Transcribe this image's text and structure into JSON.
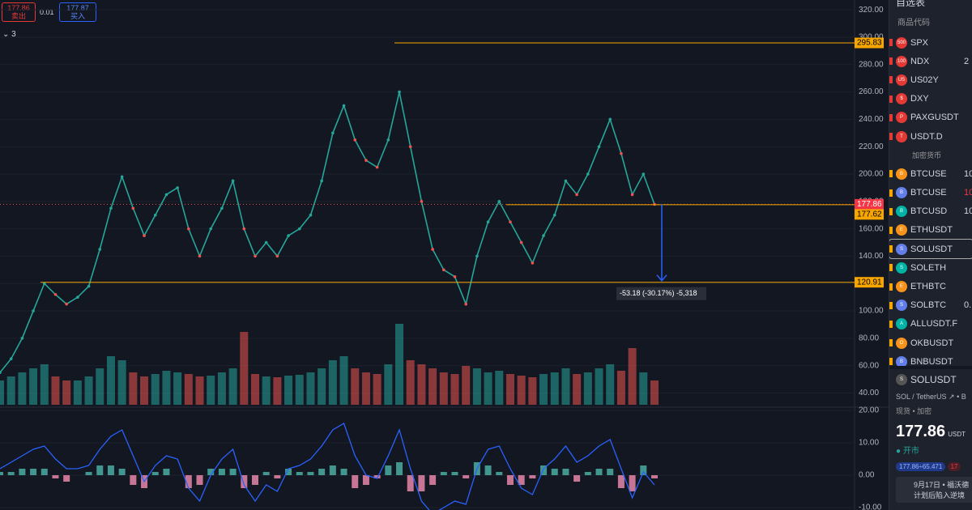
{
  "toolbar": {
    "sell_price": "177.86",
    "sell_label": "卖出",
    "spread": "0.01",
    "buy_price": "177.87",
    "buy_label": "买入",
    "indicators": "3"
  },
  "price_pane": {
    "ylim": [
      31.4,
      327.2
    ],
    "yticks": [
      {
        "value": 40,
        "label": "40.00"
      },
      {
        "value": 60,
        "label": "60.00"
      },
      {
        "value": 80,
        "label": "80.00"
      },
      {
        "value": 100,
        "label": "100.00"
      },
      {
        "value": 120,
        "label": "120.00"
      },
      {
        "value": 140,
        "label": "140.00"
      },
      {
        "value": 160,
        "label": "160.00"
      },
      {
        "value": 180,
        "label": "180.00"
      },
      {
        "value": 200,
        "label": "200.00"
      },
      {
        "value": 220,
        "label": "220.00"
      },
      {
        "value": 240,
        "label": "240.00"
      },
      {
        "value": 260,
        "label": "260.00"
      },
      {
        "value": 280,
        "label": "280.00"
      },
      {
        "value": 300,
        "label": "300.00"
      },
      {
        "value": 320,
        "label": "320.00"
      }
    ],
    "closes": [
      55,
      65,
      80,
      100,
      120,
      112,
      105,
      110,
      118,
      145,
      175,
      198,
      175,
      155,
      170,
      185,
      190,
      160,
      140,
      160,
      175,
      195,
      160,
      140,
      150,
      140,
      155,
      160,
      170,
      195,
      230,
      250,
      225,
      210,
      205,
      225,
      260,
      220,
      180,
      145,
      130,
      125,
      105,
      140,
      165,
      180,
      165,
      150,
      135,
      155,
      170,
      195,
      185,
      200,
      220,
      240,
      215,
      185,
      200,
      177.86
    ],
    "volume": [
      30,
      35,
      40,
      45,
      50,
      35,
      30,
      30,
      35,
      45,
      60,
      55,
      40,
      35,
      38,
      42,
      40,
      38,
      35,
      36,
      40,
      45,
      90,
      38,
      35,
      34,
      36,
      37,
      40,
      45,
      55,
      60,
      45,
      40,
      38,
      50,
      100,
      55,
      50,
      45,
      40,
      38,
      48,
      45,
      40,
      42,
      38,
      36,
      34,
      38,
      40,
      45,
      38,
      40,
      45,
      50,
      42,
      70,
      40,
      30
    ],
    "levels": [
      {
        "value": 295.83,
        "label": "295.83"
      },
      {
        "value": 177.86,
        "label": "177.86"
      },
      {
        "value": 177.62,
        "label": "177.62"
      },
      {
        "value": 120.91,
        "label": "120.91"
      }
    ],
    "measure": "-53.18 (-30.17%) -5,318"
  },
  "osc_pane": {
    "ylim": [
      -10.75,
      21
    ],
    "yticks": [
      {
        "value": 20,
        "label": "20.00"
      },
      {
        "value": 10,
        "label": "10.00"
      },
      {
        "value": 0,
        "label": "0.00"
      },
      {
        "value": -10,
        "label": "-10.00"
      }
    ],
    "histogram": [
      1,
      1,
      2,
      2,
      2,
      -1,
      -2,
      0,
      1,
      3,
      3,
      2,
      -3,
      -4,
      1,
      2,
      0,
      -4,
      -3,
      2,
      2,
      2,
      -4,
      -3,
      1,
      -1,
      2,
      1,
      1,
      2,
      3,
      2,
      -4,
      -3,
      -1,
      3,
      4,
      -5,
      -5,
      -3,
      1,
      1,
      -1,
      4,
      3,
      1,
      -3,
      -3,
      -1,
      3,
      2,
      2,
      -2,
      1,
      2,
      2,
      -4,
      -5,
      3,
      -1
    ],
    "line": [
      2,
      4,
      6,
      8,
      9,
      5,
      2,
      2,
      3,
      8,
      12,
      14,
      6,
      -2,
      3,
      6,
      5,
      -4,
      -8,
      0,
      5,
      8,
      -3,
      -8,
      -3,
      -5,
      2,
      3,
      5,
      9,
      14,
      16,
      6,
      0,
      -1,
      6,
      14,
      2,
      -8,
      -12,
      -10,
      -8,
      -9,
      2,
      8,
      9,
      2,
      -4,
      -6,
      2,
      5,
      9,
      4,
      6,
      9,
      11,
      2,
      -7,
      1,
      -3
    ]
  },
  "sidebar": {
    "title": "自选表",
    "column": "商品代码",
    "section": "加密货币",
    "items": [
      {
        "badge": "500",
        "symbol": "SPX",
        "value": null
      },
      {
        "badge": "100",
        "symbol": "NDX",
        "value": "2"
      },
      {
        "badge": "US",
        "symbol": "US02Y",
        "value": null
      },
      {
        "badge": "$",
        "symbol": "DXY",
        "value": null
      },
      {
        "badge": "P",
        "symbol": "PAXGUSDT",
        "value": null
      },
      {
        "badge": "T",
        "symbol": "USDT.D",
        "value": null
      },
      {
        "badge": "B",
        "symbol": "BTCUSE",
        "value": "10"
      },
      {
        "badge": "B",
        "symbol": "BTCUSE",
        "value": "10"
      },
      {
        "badge": "B",
        "symbol": "BTCUSD",
        "value": "10"
      },
      {
        "badge": "E",
        "symbol": "ETHUSDT",
        "value": null
      },
      {
        "badge": "S",
        "symbol": "SOLUSDT",
        "value": null
      },
      {
        "badge": "S",
        "symbol": "SOLETH",
        "value": null
      },
      {
        "badge": "E",
        "symbol": "ETHBTC",
        "value": null
      },
      {
        "badge": "S",
        "symbol": "SOLBTC",
        "value": "0."
      },
      {
        "badge": "A",
        "symbol": "ALLUSDT.F",
        "value": null
      },
      {
        "badge": "O",
        "symbol": "OKBUSDT",
        "value": null
      },
      {
        "badge": "B",
        "symbol": "BNBUSDT",
        "value": null
      }
    ],
    "detail": {
      "symbol": "SOLUSDT",
      "name": "SOL / TetherUS",
      "exchange": "B",
      "tags": "现货 • 加密",
      "price": "177.86",
      "currency": "USDT",
      "status": "开市",
      "pill1": "177.86÷65.471",
      "pill2": "17",
      "news1": "9月17日 • 福沃德",
      "news2": "计划后陷入逆境"
    }
  }
}
